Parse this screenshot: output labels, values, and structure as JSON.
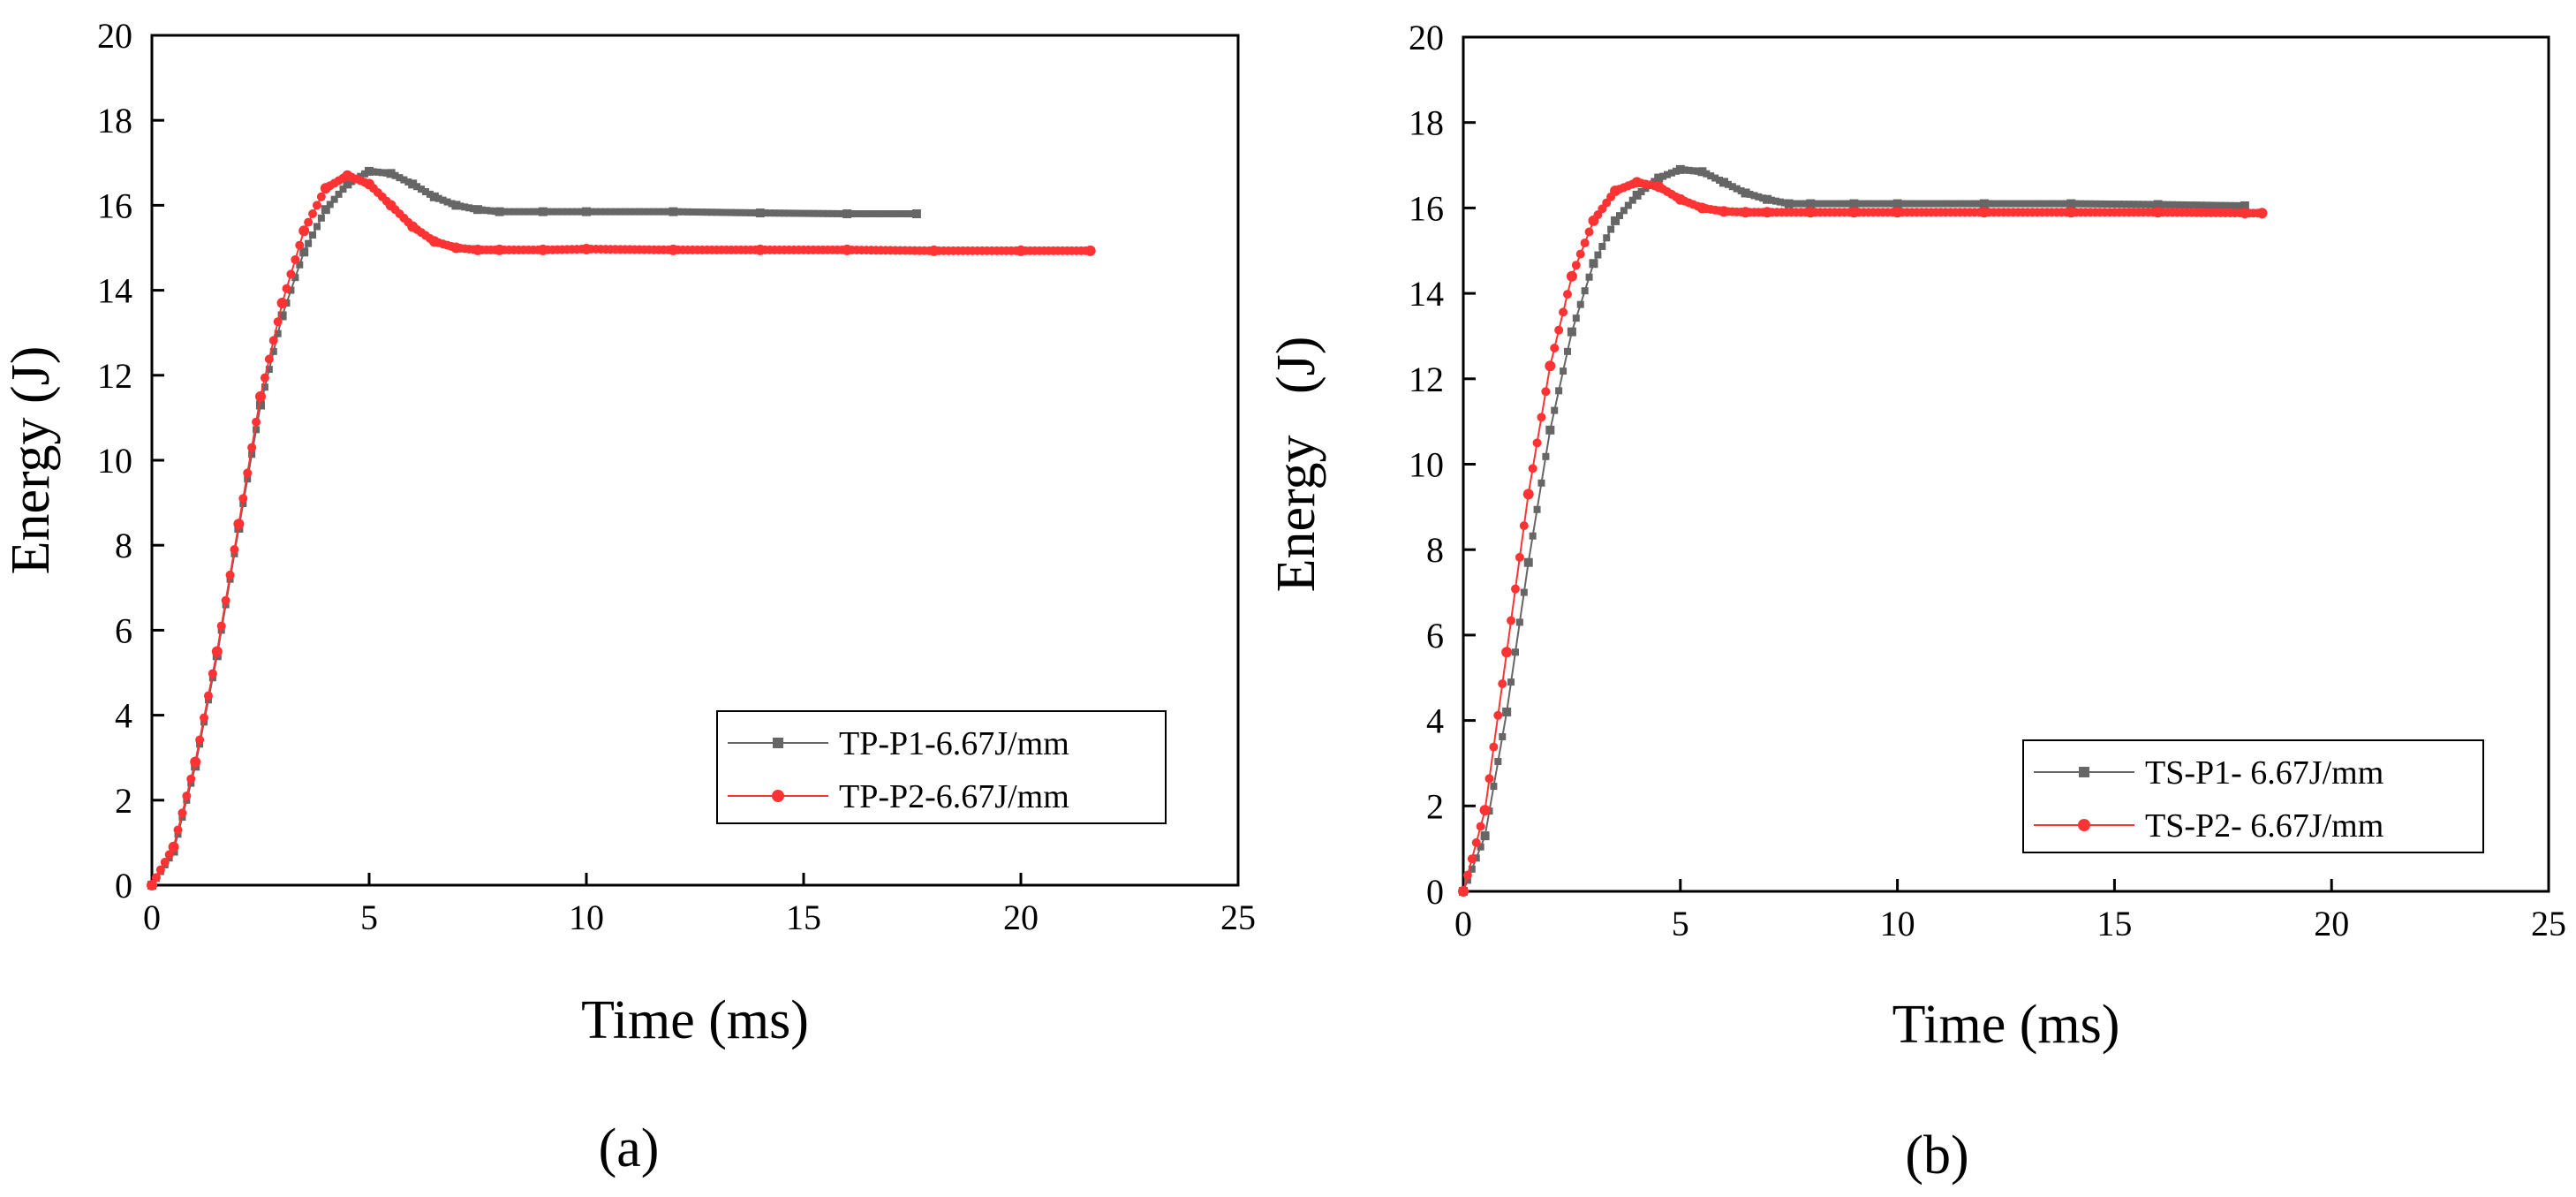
{
  "chart_data": [
    {
      "type": "scatter",
      "panel": "(a)",
      "xlabel": "Time (ms)",
      "ylabel": "Energy (J)",
      "xlim": [
        0,
        25
      ],
      "ylim": [
        0,
        20
      ],
      "xticks": [
        0,
        5,
        10,
        15,
        20,
        25
      ],
      "yticks": [
        0,
        2,
        4,
        6,
        8,
        10,
        12,
        14,
        16,
        18,
        20
      ],
      "grid": false,
      "legend": "bottom-right",
      "series": [
        {
          "name": "TP-P1-6.67J/mm",
          "color": "#666666",
          "marker": "square",
          "x": [
            0,
            0.5,
            1.0,
            1.5,
            2.0,
            2.5,
            3.0,
            3.5,
            4.0,
            4.5,
            5.0,
            5.5,
            6.0,
            6.5,
            7.0,
            7.5,
            8.0,
            9.0,
            10.0,
            12.0,
            14.0,
            16.0,
            17.6
          ],
          "y": [
            0,
            0.8,
            2.8,
            5.4,
            8.4,
            11.3,
            13.4,
            14.9,
            15.9,
            16.5,
            16.8,
            16.75,
            16.5,
            16.2,
            16.0,
            15.9,
            15.85,
            15.85,
            15.85,
            15.85,
            15.82,
            15.8,
            15.8
          ]
        },
        {
          "name": "TP-P2-6.67J/mm",
          "color": "#ff3333",
          "marker": "circle",
          "x": [
            0,
            0.5,
            1.0,
            1.5,
            2.0,
            2.5,
            3.0,
            3.5,
            4.0,
            4.5,
            5.0,
            5.5,
            6.0,
            6.5,
            7.0,
            7.5,
            8.0,
            9.0,
            10.0,
            12.0,
            14.0,
            16.0,
            18.0,
            20.0,
            21.6
          ],
          "y": [
            0,
            0.9,
            2.9,
            5.5,
            8.5,
            11.5,
            13.7,
            15.4,
            16.4,
            16.7,
            16.5,
            16.0,
            15.5,
            15.15,
            15.0,
            14.95,
            14.95,
            14.95,
            14.97,
            14.95,
            14.95,
            14.95,
            14.93,
            14.93,
            14.93
          ]
        }
      ]
    },
    {
      "type": "scatter",
      "panel": "(b)",
      "xlabel": "Time (ms)",
      "ylabel": "Energy   (J)",
      "xlim": [
        0,
        25
      ],
      "ylim": [
        0,
        20
      ],
      "xticks": [
        0,
        5,
        10,
        15,
        20,
        25
      ],
      "yticks": [
        0,
        2,
        4,
        6,
        8,
        10,
        12,
        14,
        16,
        18,
        20
      ],
      "grid": false,
      "legend": "bottom-right",
      "series": [
        {
          "name": "TS-P1- 6.67J/mm",
          "color": "#666666",
          "marker": "square",
          "x": [
            0,
            0.5,
            1.0,
            1.5,
            2.0,
            2.5,
            3.0,
            3.5,
            4.0,
            4.5,
            5.0,
            5.5,
            6.0,
            6.5,
            7.0,
            7.5,
            8.0,
            9.0,
            10.0,
            12.0,
            14.0,
            16.0,
            18.0
          ],
          "y": [
            0,
            1.3,
            4.2,
            7.7,
            10.8,
            13.1,
            14.7,
            15.7,
            16.3,
            16.7,
            16.9,
            16.85,
            16.6,
            16.35,
            16.2,
            16.1,
            16.1,
            16.1,
            16.1,
            16.1,
            16.1,
            16.08,
            16.05
          ]
        },
        {
          "name": "TS-P2- 6.67J/mm",
          "color": "#ff3333",
          "marker": "circle",
          "x": [
            0,
            0.5,
            1.0,
            1.5,
            2.0,
            2.5,
            3.0,
            3.5,
            4.0,
            4.5,
            5.0,
            5.5,
            6.0,
            6.5,
            7.0,
            8.0,
            9.0,
            10.0,
            12.0,
            14.0,
            16.0,
            18.0,
            18.4
          ],
          "y": [
            0,
            1.9,
            5.6,
            9.3,
            12.3,
            14.4,
            15.7,
            16.4,
            16.6,
            16.5,
            16.2,
            16.0,
            15.92,
            15.9,
            15.9,
            15.9,
            15.9,
            15.9,
            15.9,
            15.9,
            15.9,
            15.88,
            15.88
          ]
        }
      ]
    }
  ]
}
